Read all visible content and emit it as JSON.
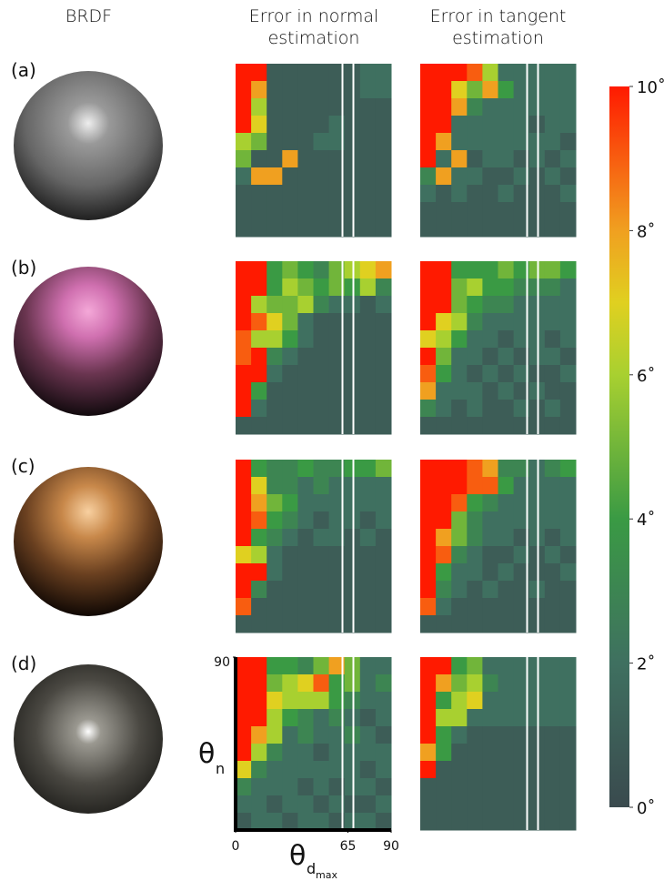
{
  "headers": [
    "BRDF",
    "Error in normal estimation",
    "Error in tangent estimation"
  ],
  "rows": [
    {
      "label": "(a)",
      "normal": [
        [
          10,
          10,
          1,
          1,
          1,
          1,
          1,
          1,
          2,
          2
        ],
        [
          10,
          8,
          1,
          1,
          1,
          1,
          1,
          1,
          2,
          2
        ],
        [
          10,
          6,
          1,
          1,
          1,
          1,
          1,
          1,
          1,
          1
        ],
        [
          10,
          7,
          1,
          1,
          1,
          1,
          2,
          1,
          1,
          1
        ],
        [
          6,
          5,
          1,
          1,
          1,
          2,
          2,
          1,
          1,
          1
        ],
        [
          5,
          1,
          1,
          8,
          1,
          1,
          1,
          1,
          1,
          1
        ],
        [
          2,
          8,
          8,
          1,
          1,
          1,
          1,
          1,
          1,
          1
        ],
        [
          1,
          1,
          1,
          1,
          1,
          1,
          1,
          1,
          1,
          1
        ],
        [
          1,
          1,
          1,
          1,
          1,
          1,
          1,
          1,
          1,
          1
        ],
        [
          1,
          1,
          1,
          1,
          1,
          1,
          1,
          1,
          1,
          1
        ]
      ],
      "tangent": [
        [
          10,
          10,
          10,
          9,
          6,
          2,
          2,
          2,
          2,
          2
        ],
        [
          10,
          10,
          7,
          5,
          8,
          4,
          2,
          2,
          2,
          2
        ],
        [
          10,
          10,
          8,
          3,
          2,
          2,
          2,
          2,
          2,
          2
        ],
        [
          10,
          10,
          2,
          2,
          2,
          2,
          2,
          1,
          2,
          2
        ],
        [
          10,
          8,
          2,
          2,
          2,
          2,
          2,
          2,
          2,
          1
        ],
        [
          10,
          2,
          8,
          1,
          2,
          2,
          1,
          2,
          1,
          2
        ],
        [
          3,
          8,
          2,
          2,
          1,
          1,
          2,
          1,
          2,
          1
        ],
        [
          2,
          1,
          2,
          1,
          1,
          2,
          1,
          1,
          1,
          2
        ],
        [
          1,
          1,
          1,
          1,
          1,
          1,
          1,
          1,
          1,
          1
        ],
        [
          1,
          1,
          1,
          1,
          1,
          1,
          1,
          1,
          1,
          1
        ]
      ]
    },
    {
      "label": "(b)",
      "normal": [
        [
          10,
          10,
          4,
          5,
          4,
          3,
          5,
          6,
          7,
          8
        ],
        [
          10,
          10,
          4,
          6,
          5,
          4,
          5,
          4,
          6,
          3
        ],
        [
          10,
          6,
          5,
          5,
          6,
          3,
          2,
          2,
          1,
          2
        ],
        [
          10,
          9,
          7,
          5,
          2,
          1,
          1,
          1,
          1,
          1
        ],
        [
          9,
          6,
          6,
          4,
          2,
          1,
          1,
          1,
          1,
          1
        ],
        [
          9,
          10,
          3,
          2,
          1,
          1,
          1,
          1,
          1,
          1
        ],
        [
          10,
          10,
          2,
          1,
          1,
          1,
          1,
          1,
          1,
          1
        ],
        [
          10,
          4,
          1,
          1,
          1,
          1,
          1,
          1,
          1,
          1
        ],
        [
          10,
          2,
          1,
          1,
          1,
          1,
          1,
          1,
          1,
          1
        ],
        [
          1,
          1,
          1,
          1,
          1,
          1,
          1,
          1,
          1,
          1
        ]
      ],
      "tangent": [
        [
          10,
          10,
          4,
          4,
          4,
          5,
          4,
          5,
          5,
          4
        ],
        [
          10,
          10,
          5,
          6,
          4,
          4,
          3,
          3,
          3,
          2
        ],
        [
          10,
          10,
          5,
          4,
          3,
          3,
          2,
          2,
          2,
          2
        ],
        [
          10,
          7,
          6,
          3,
          2,
          2,
          2,
          2,
          2,
          2
        ],
        [
          7,
          6,
          4,
          2,
          2,
          1,
          2,
          2,
          1,
          2
        ],
        [
          10,
          5,
          2,
          2,
          1,
          2,
          1,
          2,
          2,
          1
        ],
        [
          9,
          4,
          2,
          1,
          2,
          1,
          2,
          1,
          1,
          2
        ],
        [
          8,
          2,
          2,
          2,
          1,
          2,
          1,
          2,
          1,
          1
        ],
        [
          3,
          2,
          1,
          2,
          1,
          1,
          2,
          1,
          2,
          1
        ],
        [
          1,
          1,
          1,
          1,
          1,
          1,
          1,
          1,
          1,
          1
        ]
      ]
    },
    {
      "label": "(c)",
      "normal": [
        [
          10,
          4,
          3,
          3,
          4,
          3,
          3,
          4,
          4,
          5
        ],
        [
          10,
          7,
          3,
          3,
          2,
          3,
          2,
          2,
          2,
          2
        ],
        [
          10,
          8,
          5,
          4,
          2,
          2,
          2,
          2,
          2,
          2
        ],
        [
          10,
          9,
          4,
          3,
          2,
          1,
          2,
          2,
          1,
          2
        ],
        [
          10,
          4,
          3,
          2,
          1,
          2,
          2,
          1,
          2,
          1
        ],
        [
          7,
          6,
          2,
          1,
          1,
          1,
          1,
          1,
          1,
          1
        ],
        [
          10,
          10,
          2,
          1,
          1,
          1,
          1,
          1,
          1,
          1
        ],
        [
          10,
          3,
          1,
          1,
          1,
          1,
          1,
          1,
          1,
          1
        ],
        [
          9,
          1,
          1,
          1,
          1,
          1,
          1,
          1,
          1,
          1
        ],
        [
          1,
          1,
          1,
          1,
          1,
          1,
          1,
          1,
          1,
          1
        ]
      ],
      "tangent": [
        [
          10,
          10,
          10,
          9,
          8,
          3,
          3,
          2,
          3,
          4
        ],
        [
          10,
          10,
          10,
          9,
          9,
          4,
          2,
          2,
          2,
          2
        ],
        [
          10,
          10,
          9,
          4,
          3,
          2,
          2,
          2,
          2,
          2
        ],
        [
          10,
          10,
          5,
          3,
          2,
          2,
          2,
          2,
          2,
          2
        ],
        [
          10,
          8,
          5,
          3,
          2,
          2,
          1,
          2,
          1,
          2
        ],
        [
          10,
          9,
          3,
          2,
          1,
          1,
          2,
          1,
          2,
          1
        ],
        [
          10,
          4,
          2,
          2,
          1,
          2,
          1,
          1,
          1,
          2
        ],
        [
          10,
          3,
          2,
          1,
          2,
          1,
          1,
          2,
          1,
          1
        ],
        [
          9,
          2,
          1,
          1,
          1,
          1,
          1,
          1,
          1,
          1
        ],
        [
          1,
          1,
          1,
          1,
          1,
          1,
          1,
          1,
          1,
          1
        ]
      ]
    },
    {
      "label": "(d)",
      "normal": [
        [
          10,
          10,
          4,
          4,
          3,
          5,
          8,
          5,
          2,
          2
        ],
        [
          10,
          10,
          5,
          6,
          7,
          9,
          4,
          5,
          2,
          3
        ],
        [
          10,
          10,
          7,
          6,
          6,
          6,
          4,
          3,
          2,
          2
        ],
        [
          10,
          10,
          6,
          4,
          3,
          2,
          3,
          2,
          1,
          2
        ],
        [
          10,
          8,
          6,
          2,
          3,
          2,
          2,
          3,
          2,
          1
        ],
        [
          10,
          6,
          3,
          2,
          2,
          1,
          2,
          2,
          2,
          2
        ],
        [
          7,
          3,
          2,
          2,
          2,
          2,
          2,
          2,
          1,
          2
        ],
        [
          3,
          2,
          2,
          2,
          1,
          2,
          1,
          2,
          2,
          1
        ],
        [
          2,
          2,
          1,
          2,
          2,
          1,
          2,
          1,
          1,
          2
        ],
        [
          1,
          2,
          2,
          1,
          2,
          2,
          1,
          2,
          2,
          1
        ]
      ],
      "tangent": [
        [
          10,
          10,
          4,
          5,
          2,
          2,
          2,
          2,
          2,
          2
        ],
        [
          10,
          8,
          5,
          6,
          3,
          2,
          2,
          2,
          2,
          2
        ],
        [
          10,
          4,
          6,
          7,
          2,
          2,
          2,
          2,
          2,
          2
        ],
        [
          10,
          6,
          6,
          2,
          2,
          2,
          2,
          2,
          2,
          2
        ],
        [
          10,
          4,
          2,
          1,
          1,
          1,
          1,
          1,
          1,
          1
        ],
        [
          8,
          4,
          1,
          1,
          1,
          1,
          1,
          1,
          1,
          1
        ],
        [
          10,
          1,
          1,
          1,
          1,
          1,
          1,
          1,
          1,
          1
        ],
        [
          1,
          1,
          1,
          1,
          1,
          1,
          1,
          1,
          1,
          1
        ],
        [
          1,
          1,
          1,
          1,
          1,
          1,
          1,
          1,
          1,
          1
        ],
        [
          1,
          1,
          1,
          1,
          1,
          1,
          1,
          1,
          1,
          1
        ]
      ]
    }
  ],
  "heatmap_axes": {
    "xlim": [
      0,
      90
    ],
    "ylim": [
      0,
      90
    ],
    "xticks": [
      0,
      65,
      90
    ],
    "yticks": [
      90
    ],
    "xlabel": "θ",
    "xlabel_sub": "d",
    "xlabel_subsub": "max",
    "ylabel": "θ",
    "ylabel_sub": "n"
  },
  "colorbar": {
    "lim": [
      0,
      10
    ],
    "ticks": [
      {
        "value": 0,
        "label": "0˚"
      },
      {
        "value": 2,
        "label": "2˚"
      },
      {
        "value": 4,
        "label": "4˚"
      },
      {
        "value": 6,
        "label": "6˚"
      },
      {
        "value": 8,
        "label": "8˚"
      },
      {
        "value": 10,
        "label": "10˚"
      }
    ]
  }
}
